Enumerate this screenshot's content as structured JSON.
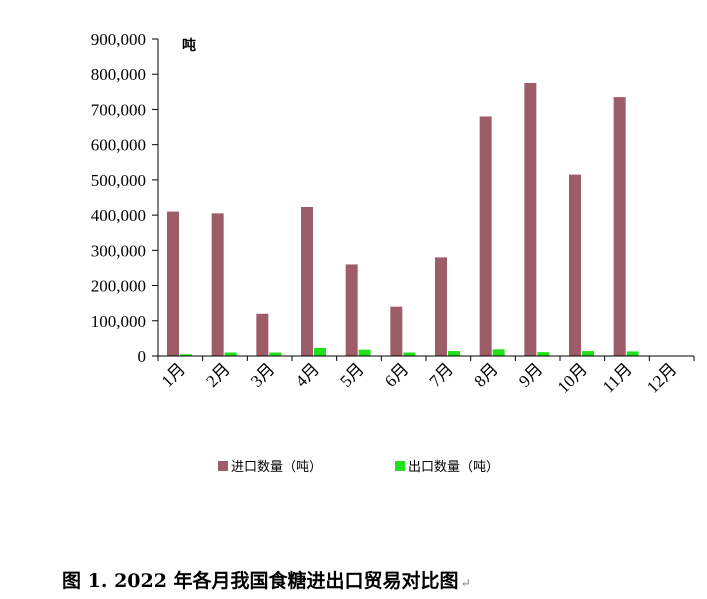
{
  "chart_data": {
    "type": "bar",
    "unit_label": "吨",
    "categories": [
      "1月",
      "2月",
      "3月",
      "4月",
      "5月",
      "6月",
      "7月",
      "8月",
      "9月",
      "10月",
      "11月",
      "12月"
    ],
    "series": [
      {
        "name": "进口数量（吨）",
        "color": "#9e5b68",
        "values": [
          410000,
          405000,
          120000,
          423000,
          260000,
          140000,
          280000,
          680000,
          775000,
          515000,
          735000,
          null
        ]
      },
      {
        "name": "出口数量（吨）",
        "color": "#22e01d",
        "values": [
          5000,
          10000,
          10000,
          23000,
          18000,
          10000,
          14000,
          19000,
          11000,
          14000,
          13000,
          null
        ]
      }
    ],
    "yticks": [
      "0",
      "100,000",
      "200,000",
      "300,000",
      "400,000",
      "500,000",
      "600,000",
      "700,000",
      "800,000",
      "900,000"
    ],
    "ylim": [
      0,
      900000
    ],
    "grid": false,
    "legend_position": "bottom"
  },
  "caption": "图 1. 2022 年各月我国食糖进出口贸易对比图",
  "caption_mark": "↵"
}
